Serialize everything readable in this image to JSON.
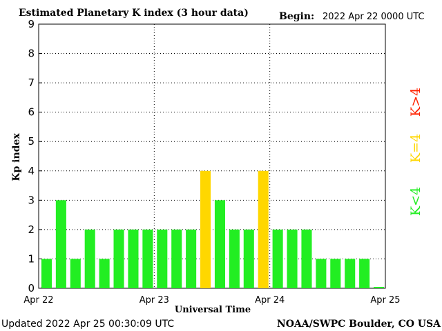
{
  "chart_data": {
    "type": "bar",
    "title": "Estimated Planetary K index (3 hour data)",
    "begin_label": "Begin:",
    "begin_value": "2022 Apr 22 0000 UTC",
    "ylabel": "Kp index",
    "xlabel": "Universal Time",
    "ylim": [
      0,
      9
    ],
    "yticks": [
      "0",
      "1",
      "2",
      "3",
      "4",
      "5",
      "6",
      "7",
      "8",
      "9"
    ],
    "xticks": [
      "Apr 22",
      "Apr 23",
      "Apr 24",
      "Apr 25"
    ],
    "grid": true,
    "values": [
      1,
      3,
      1,
      2,
      1,
      2,
      2,
      2,
      2,
      2,
      2,
      4,
      3,
      2,
      2,
      4,
      2,
      2,
      2,
      1,
      1,
      1,
      1,
      0
    ],
    "colors": {
      "below4": "#22ee22",
      "equal4": "#ffd700",
      "above4": "#ff2200"
    },
    "legend": {
      "placement": "right",
      "items": [
        {
          "label": "K>4",
          "color": "#ff2200"
        },
        {
          "label": "K=4",
          "color": "#ffd700"
        },
        {
          "label": "K<4",
          "color": "#22ee22"
        }
      ]
    },
    "updated": "Updated 2022 Apr 25 00:30:09 UTC",
    "credit": "NOAA/SWPC Boulder, CO USA"
  }
}
